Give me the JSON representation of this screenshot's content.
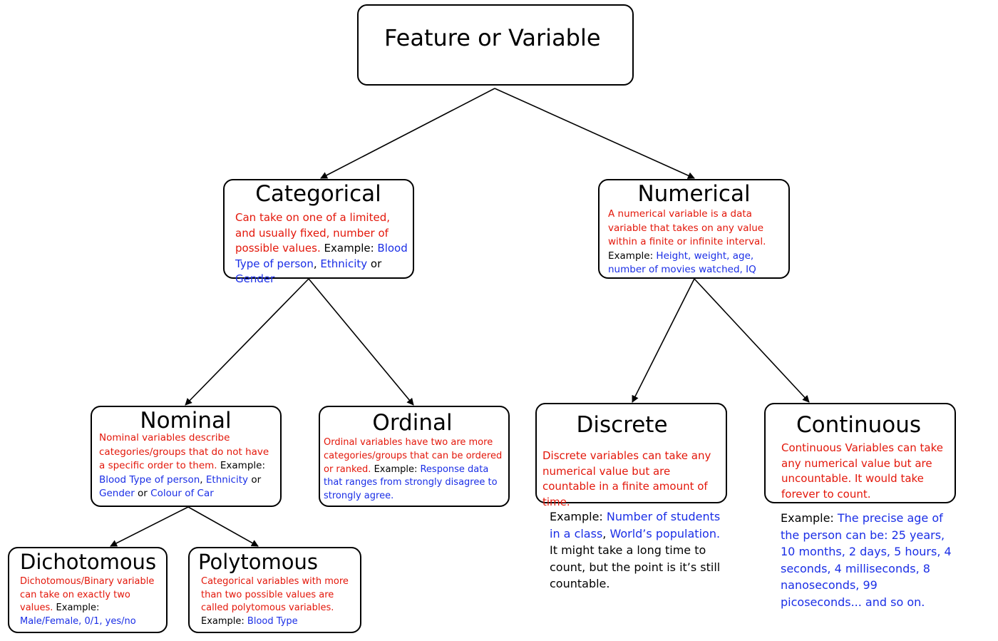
{
  "root": {
    "title": "Feature or Variable"
  },
  "categorical": {
    "title": "Categorical",
    "definition": "Can take on one of a limited, and usually fixed, number of possible values.",
    "example_label": " Example: ",
    "ex1": "Blood Type of person",
    "sep1": ", ",
    "ex2": "Ethnicity",
    "sep2": " or ",
    "ex3": "Gender"
  },
  "numerical": {
    "title": "Numerical",
    "definition": "A numerical variable is a data variable that takes on any value within a finite or infinite interval.",
    "example_label": "Example: ",
    "examples": "Height, weight, age, number of movies watched, IQ"
  },
  "nominal": {
    "title": "Nominal",
    "definition": "Nominal variables describe categories/groups that do not have a specific order to them.",
    "example_label": " Example: ",
    "ex1": "Blood Type of person",
    "sep1": ", ",
    "ex2": "Ethnicity",
    "sep2": " or ",
    "ex3": "Gender",
    "sep3": " or ",
    "ex4": "Colour of Car"
  },
  "ordinal": {
    "title": "Ordinal",
    "definition": "Ordinal variables have two are more categories/groups that can be ordered or ranked.",
    "example_label": " Example: ",
    "examples": "Response data that ranges from strongly disagree to strongly agree."
  },
  "discrete": {
    "title": "Discrete",
    "definition": "Discrete variables can take any numerical value but are countable in a finite amount of time.",
    "example_label": "Example: ",
    "ex1": "Number of students in a class",
    "sep1": ", ",
    "ex2": "World’s population.",
    "note": " It might take a long time to count, but the point is it’s still countable."
  },
  "continuous": {
    "title": "Continuous",
    "definition": "Continuous Variables can take any numerical value but are uncountable. It  would take forever to count.",
    "example_label": "Example: ",
    "examples": "The precise age of the person can be: 25 years, 10 months, 2 days, 5 hours, 4 seconds, 4 milliseconds, 8 nanoseconds, 99 picoseconds... and so on."
  },
  "dichotomous": {
    "title": "Dichotomous",
    "definition": "Dichotomous/Binary variable can take on exactly two values.",
    "example_label": " Example: ",
    "examples": "Male/Female, 0/1, yes/no"
  },
  "polytomous": {
    "title": "Polytomous",
    "definition": "Categorical variables with more than two possible values are called polytomous variables.",
    "example_label": "Example: ",
    "examples": "Blood Type"
  },
  "colors": {
    "definition": "#e3170a",
    "example": "#1a2ee6",
    "border": "#000000"
  }
}
